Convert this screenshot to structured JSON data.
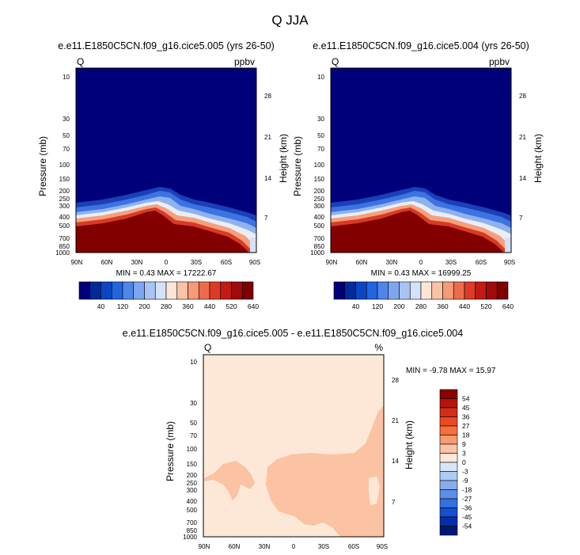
{
  "figure": {
    "title": "Q JJA"
  },
  "chart_data": [
    {
      "type": "heatmap",
      "title": "e.e11.E1850C5CN.f09_g16.cice5.005 (yrs 26-50)",
      "left_label": "Q",
      "right_label": "ppbv",
      "xlabel": "",
      "ylabel": "Pressure (mb)",
      "ylabel_right": "Height (km)",
      "x_ticks": [
        "90N",
        "60N",
        "30N",
        "0",
        "30S",
        "60S",
        "90S"
      ],
      "y_ticks": [
        "10",
        "30",
        "50",
        "70",
        "100",
        "150",
        "200",
        "250",
        "300",
        "400",
        "500",
        "700",
        "850",
        "1000"
      ],
      "height_ticks": [
        "28",
        "21",
        "14",
        "7"
      ],
      "stats": "MIN =   0.43  MAX = 17222.67",
      "colorbar_labels": [
        "40",
        "120",
        "200",
        "280",
        "360",
        "440",
        "520",
        "640"
      ],
      "colorbar_colors": [
        "#00007a",
        "#002a9a",
        "#0a46c4",
        "#2166e0",
        "#4f86e8",
        "#7ea6ee",
        "#a9c4f2",
        "#d3e2f7",
        "#fde6d8",
        "#fac3a6",
        "#f59b78",
        "#ec6b4d",
        "#dd3b27",
        "#c21a14",
        "#a00a0a",
        "#7d0000"
      ],
      "description_levels": {
        "background": "#00007a",
        "surface_max": "#820000"
      }
    },
    {
      "type": "heatmap",
      "title": "e.e11.E1850C5CN.f09_g16.cice5.004 (yrs 26-50)",
      "left_label": "Q",
      "right_label": "ppbv",
      "xlabel": "",
      "ylabel": "Pressure (mb)",
      "ylabel_right": "Height (km)",
      "x_ticks": [
        "90N",
        "60N",
        "30N",
        "0",
        "30S",
        "60S",
        "90S"
      ],
      "y_ticks": [
        "10",
        "30",
        "50",
        "70",
        "100",
        "150",
        "200",
        "250",
        "300",
        "400",
        "500",
        "700",
        "850",
        "1000"
      ],
      "height_ticks": [
        "28",
        "21",
        "14",
        "7"
      ],
      "stats": "MIN =   0.43  MAX = 16999.25",
      "colorbar_labels": [
        "40",
        "120",
        "200",
        "280",
        "360",
        "440",
        "520",
        "640"
      ],
      "colorbar_colors": [
        "#00007a",
        "#002a9a",
        "#0a46c4",
        "#2166e0",
        "#4f86e8",
        "#7ea6ee",
        "#a9c4f2",
        "#d3e2f7",
        "#fde6d8",
        "#fac3a6",
        "#f59b78",
        "#ec6b4d",
        "#dd3b27",
        "#c21a14",
        "#a00a0a",
        "#7d0000"
      ]
    },
    {
      "type": "heatmap",
      "title": "e.e11.E1850C5CN.f09_g16.cice5.005 - e.e11.E1850C5CN.f09_g16.cice5.004",
      "left_label": "Q",
      "right_label": "%",
      "xlabel": "",
      "ylabel": "Pressure (mb)",
      "ylabel_right": "Height (km)",
      "x_ticks": [
        "90N",
        "60N",
        "30N",
        "0",
        "30S",
        "60S",
        "90S"
      ],
      "y_ticks": [
        "10",
        "30",
        "50",
        "70",
        "100",
        "150",
        "200",
        "250",
        "300",
        "400",
        "500",
        "700",
        "850",
        "1000"
      ],
      "height_ticks": [
        "28",
        "21",
        "14",
        "7"
      ],
      "stats": "MIN = -9.78  MAX = 15.97",
      "colorbar_labels": [
        "54",
        "45",
        "36",
        "27",
        "18",
        "9",
        "3",
        "0",
        "-3",
        "-9",
        "-18",
        "-27",
        "-36",
        "-45",
        "-54"
      ],
      "colorbar_colors": [
        "#8c0000",
        "#b5140a",
        "#d42d15",
        "#ea4a23",
        "#f6703b",
        "#f99a6f",
        "#fbc3a3",
        "#fde8d8",
        "#d6e6f8",
        "#aecbf4",
        "#86aeee",
        "#5d8fe7",
        "#3370e0",
        "#164fcf",
        "#0430a8",
        "#001878"
      ]
    }
  ]
}
